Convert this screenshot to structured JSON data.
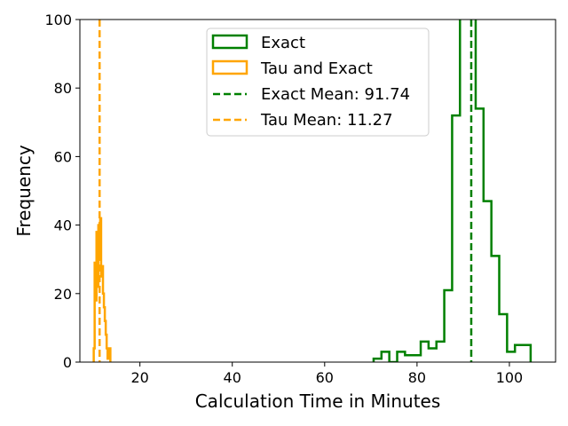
{
  "chart_data": {
    "type": "histogram",
    "xlabel": "Calculation Time in Minutes",
    "ylabel": "Frequency",
    "xlim": [
      7.0,
      110.0
    ],
    "ylim": [
      0,
      100
    ],
    "xticks": [
      20,
      40,
      60,
      80,
      100
    ],
    "yticks": [
      0,
      20,
      40,
      60,
      80,
      100
    ],
    "grid": false,
    "legend_position": "upper-center",
    "series": [
      {
        "name": "Exact",
        "style": "step-outline",
        "color": "#008000",
        "bin_width": 1.7,
        "bins": [
          [
            70.6,
            1
          ],
          [
            72.3,
            3
          ],
          [
            74.0,
            0
          ],
          [
            75.7,
            3
          ],
          [
            77.4,
            2
          ],
          [
            79.1,
            2
          ],
          [
            80.8,
            6
          ],
          [
            82.5,
            4
          ],
          [
            84.2,
            6
          ],
          [
            85.9,
            21
          ],
          [
            87.6,
            72
          ],
          [
            89.3,
            105
          ],
          [
            91.0,
            105
          ],
          [
            92.7,
            74
          ],
          [
            94.4,
            47
          ],
          [
            96.1,
            31
          ],
          [
            97.8,
            14
          ],
          [
            99.5,
            3
          ],
          [
            101.2,
            5
          ],
          [
            102.9,
            5
          ]
        ]
      },
      {
        "name": "Tau and Exact",
        "style": "step-outline",
        "color": "#FFA500",
        "bin_width": 0.2,
        "bins": [
          [
            10.0,
            4
          ],
          [
            10.2,
            29
          ],
          [
            10.4,
            18
          ],
          [
            10.6,
            38
          ],
          [
            10.8,
            22
          ],
          [
            11.0,
            40
          ],
          [
            11.2,
            30
          ],
          [
            11.4,
            42
          ],
          [
            11.6,
            25
          ],
          [
            11.8,
            28
          ],
          [
            12.0,
            20
          ],
          [
            12.2,
            16
          ],
          [
            12.4,
            12
          ],
          [
            12.6,
            8
          ],
          [
            12.8,
            4
          ],
          [
            13.0,
            1
          ],
          [
            13.2,
            3
          ],
          [
            13.4,
            4
          ]
        ]
      }
    ],
    "mean_lines": [
      {
        "name": "Exact Mean: 91.74",
        "value": 91.74,
        "color": "#008000",
        "dash": "dashed"
      },
      {
        "name": "Tau Mean: 11.27",
        "value": 11.27,
        "color": "#FFA500",
        "dash": "dashed"
      }
    ]
  }
}
